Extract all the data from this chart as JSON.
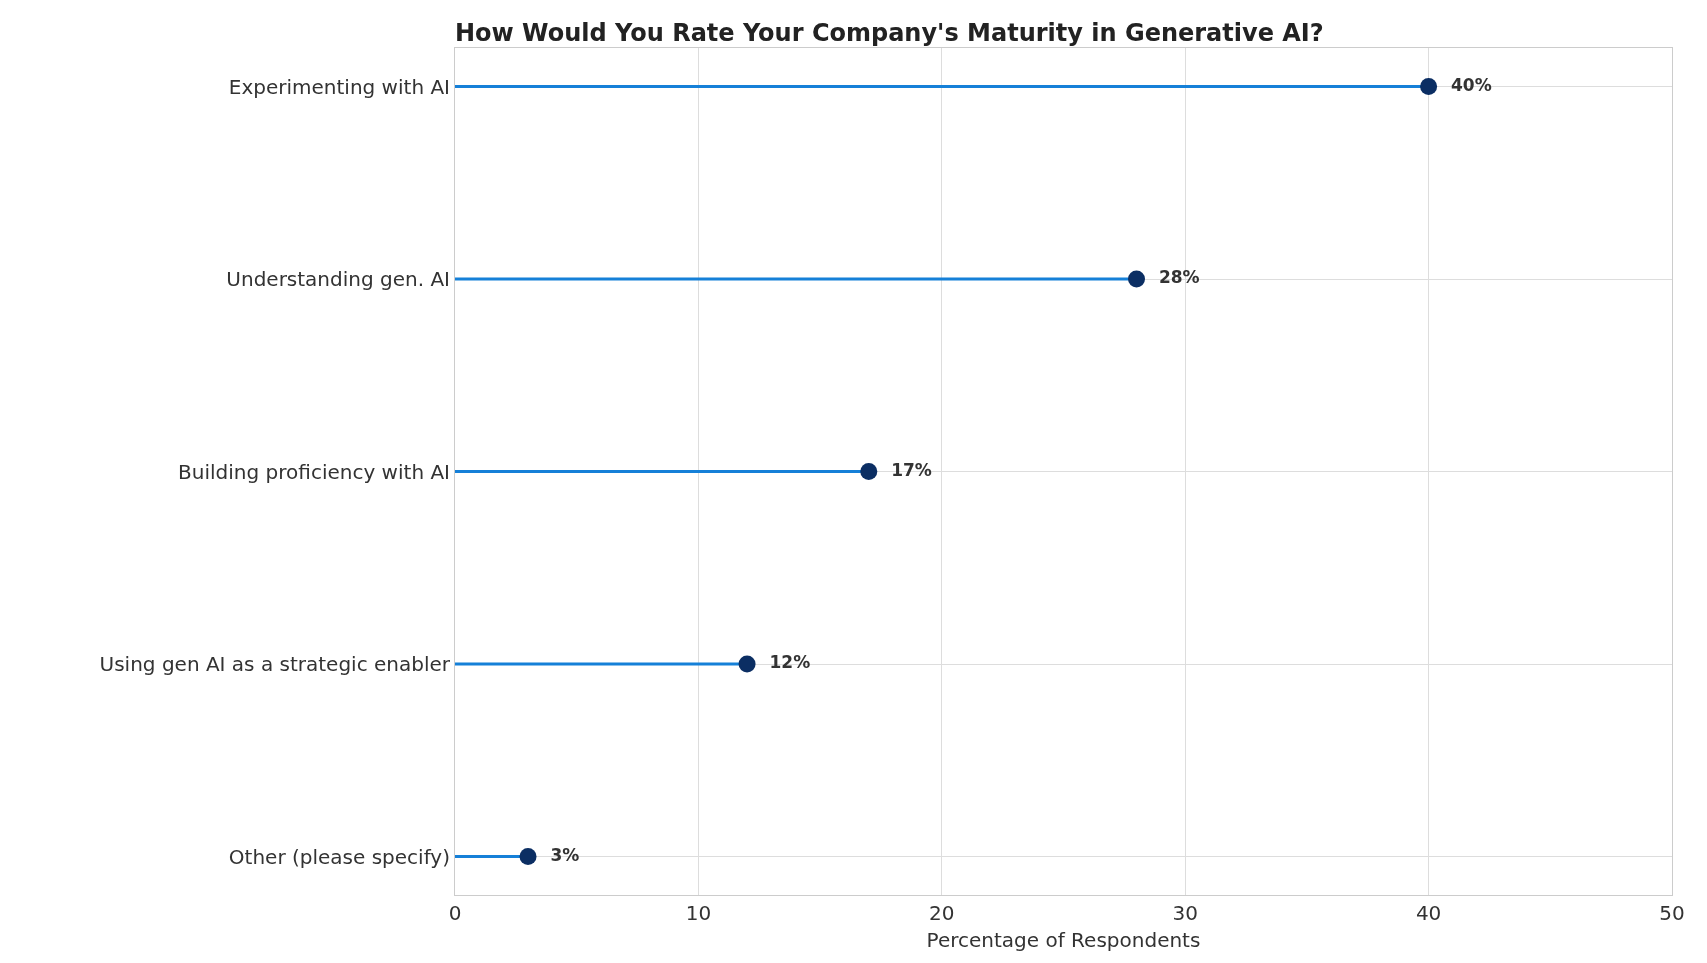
{
  "chart_data": {
    "type": "lollipop",
    "title": "How Would You Rate Your Company's Maturity in Generative AI?",
    "xlabel": "Percentage of Respondents",
    "orientation": "horizontal",
    "categories": [
      "Experimenting with AI",
      "Understanding gen. AI",
      "Building proficiency with AI",
      "Using gen AI as a strategic enabler",
      "Other (please specify)"
    ],
    "series": [
      {
        "color": "#1580d8",
        "colors": [
          "#0b2e63",
          "#0b2e63",
          "#0b2e63",
          "#0b2e63",
          "#0b2e63"
        ],
        "values": [
          40,
          28,
          17,
          12,
          3
        ],
        "value_labels": [
          "40%",
          "28%",
          "17%",
          "12%",
          "3%"
        ]
      }
    ],
    "xlim": [
      0,
      50
    ],
    "xticks": [
      0,
      10,
      20,
      30,
      40,
      50
    ],
    "grid": true,
    "marker": "circle"
  }
}
